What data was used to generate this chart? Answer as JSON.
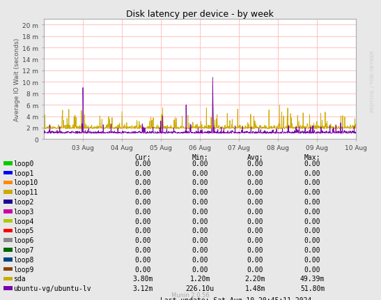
{
  "title": "Disk latency per device - by week",
  "ylabel": "Average IO Wait (seconds)",
  "background_color": "#e8e8e8",
  "plot_bg_color": "#ffffff",
  "grid_color": "#ffaaaa",
  "axis_color": "#aaaaaa",
  "ytick_labels": [
    "0",
    "2 m",
    "4 m",
    "6 m",
    "8 m",
    "10 m",
    "12 m",
    "14 m",
    "16 m",
    "18 m",
    "20 m"
  ],
  "ytick_values": [
    0,
    2,
    4,
    6,
    8,
    10,
    12,
    14,
    16,
    18,
    20
  ],
  "xtick_labels": [
    "03 Aug",
    "04 Aug",
    "05 Aug",
    "06 Aug",
    "07 Aug",
    "08 Aug",
    "09 Aug",
    "10 Aug"
  ],
  "ylim": [
    0,
    21
  ],
  "legend_entries": [
    {
      "label": "loop0",
      "color": "#00cc00"
    },
    {
      "label": "loop1",
      "color": "#0000ff"
    },
    {
      "label": "loop10",
      "color": "#ff8800"
    },
    {
      "label": "loop11",
      "color": "#ccaa00"
    },
    {
      "label": "loop2",
      "color": "#220099"
    },
    {
      "label": "loop3",
      "color": "#cc00aa"
    },
    {
      "label": "loop4",
      "color": "#aacc00"
    },
    {
      "label": "loop5",
      "color": "#ff0000"
    },
    {
      "label": "loop6",
      "color": "#888888"
    },
    {
      "label": "loop7",
      "color": "#006600"
    },
    {
      "label": "loop8",
      "color": "#004488"
    },
    {
      "label": "loop9",
      "color": "#884400"
    },
    {
      "label": "sda",
      "color": "#ccaa00"
    },
    {
      "label": "ubuntu-vg/ubuntu-lv",
      "color": "#7700aa"
    }
  ],
  "legend_cols": [
    {
      "header": "Cur:",
      "col": [
        "0.00",
        "0.00",
        "0.00",
        "0.00",
        "0.00",
        "0.00",
        "0.00",
        "0.00",
        "0.00",
        "0.00",
        "0.00",
        "0.00",
        "3.80m",
        "3.12m"
      ]
    },
    {
      "header": "Min:",
      "col": [
        "0.00",
        "0.00",
        "0.00",
        "0.00",
        "0.00",
        "0.00",
        "0.00",
        "0.00",
        "0.00",
        "0.00",
        "0.00",
        "0.00",
        "1.20m",
        "226.10u"
      ]
    },
    {
      "header": "Avg:",
      "col": [
        "0.00",
        "0.00",
        "0.00",
        "0.00",
        "0.00",
        "0.00",
        "0.00",
        "0.00",
        "0.00",
        "0.00",
        "0.00",
        "0.00",
        "2.20m",
        "1.48m"
      ]
    },
    {
      "header": "Max:",
      "col": [
        "0.00",
        "0.00",
        "0.00",
        "0.00",
        "0.00",
        "0.00",
        "0.00",
        "0.00",
        "0.00",
        "0.00",
        "0.00",
        "0.00",
        "49.39m",
        "51.80m"
      ]
    }
  ],
  "footer": "Last update: Sat Aug 10 20:45:11 2024",
  "munin_version": "Munin 2.0.56",
  "watermark": "RRDTOOL / TOBI OETIKER",
  "sda_color": "#ccaa00",
  "ubuntu_color": "#7700aa"
}
